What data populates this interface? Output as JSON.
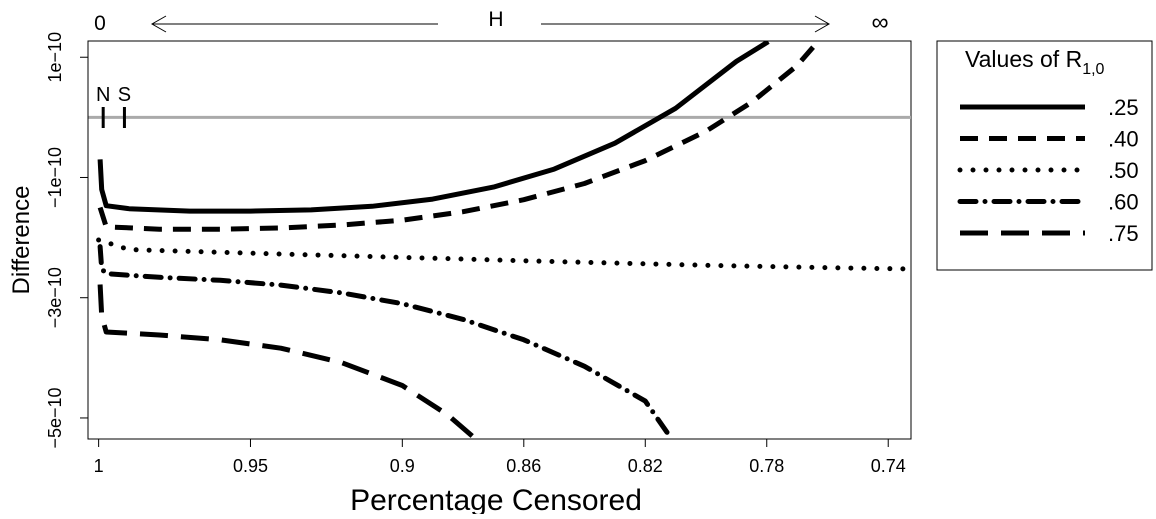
{
  "chart_data": {
    "type": "line",
    "title": "",
    "xlabel": "Percentage Censored",
    "ylabel": "Difference",
    "x_reversed": true,
    "xlim": [
      1.0035,
      0.7325
    ],
    "ylim": [
      -5.35e-10,
      1.27e-10
    ],
    "x_ticks": [
      {
        "value": 1.0,
        "label": "1"
      },
      {
        "value": 0.95,
        "label": "0.95"
      },
      {
        "value": 0.9,
        "label": "0.9"
      },
      {
        "value": 0.86,
        "label": "0.86"
      },
      {
        "value": 0.82,
        "label": "0.82"
      },
      {
        "value": 0.78,
        "label": "0.78"
      },
      {
        "value": 0.74,
        "label": "0.74"
      }
    ],
    "y_ticks": [
      {
        "value": 1e-10,
        "label": "1e−10"
      },
      {
        "value": -1e-10,
        "label": "−1e−10"
      },
      {
        "value": -3e-10,
        "label": "−3e−10"
      },
      {
        "value": -5e-10,
        "label": "−5e−10"
      }
    ],
    "reference_line": {
      "y": 0,
      "color": "#aaaaaa"
    },
    "top_axis": {
      "left_label": "0",
      "center_label": "H",
      "right_label": "∞"
    },
    "markers": [
      {
        "label": "N",
        "x": 0.9985
      },
      {
        "label": "S",
        "x": 0.9915
      }
    ],
    "legend": {
      "title_main": "Values of R",
      "title_sub": "1,0",
      "position": "right",
      "entries": [
        ".25",
        ".40",
        ".50",
        ".60",
        ".75"
      ]
    },
    "series": [
      {
        "name": ".25",
        "dash": "solid",
        "color": "#000000",
        "points": [
          [
            0.9995,
            -7e-11
          ],
          [
            0.999,
            -1.2e-10
          ],
          [
            0.9975,
            -1.47e-10
          ],
          [
            0.99,
            -1.52e-10
          ],
          [
            0.97,
            -1.56e-10
          ],
          [
            0.95,
            -1.56e-10
          ],
          [
            0.93,
            -1.54e-10
          ],
          [
            0.91,
            -1.48e-10
          ],
          [
            0.89,
            -1.36e-10
          ],
          [
            0.87,
            -1.16e-10
          ],
          [
            0.85,
            -8.6e-11
          ],
          [
            0.83,
            -4.3e-11
          ],
          [
            0.81,
            1.5e-11
          ],
          [
            0.79,
            9.3e-11
          ],
          [
            0.7795,
            1.26e-10
          ]
        ]
      },
      {
        "name": ".40",
        "dash": "long",
        "color": "#000000",
        "points": [
          [
            0.9995,
            -1.5e-10
          ],
          [
            0.9975,
            -1.82e-10
          ],
          [
            0.98,
            -1.86e-10
          ],
          [
            0.96,
            -1.86e-10
          ],
          [
            0.94,
            -1.84e-10
          ],
          [
            0.92,
            -1.79e-10
          ],
          [
            0.9,
            -1.71e-10
          ],
          [
            0.88,
            -1.57e-10
          ],
          [
            0.86,
            -1.37e-10
          ],
          [
            0.84,
            -1.1e-10
          ],
          [
            0.82,
            -7.2e-11
          ],
          [
            0.8,
            -2.3e-11
          ],
          [
            0.785,
            2.5e-11
          ],
          [
            0.77,
            8.6e-11
          ],
          [
            0.7635,
            1.24e-10
          ]
        ]
      },
      {
        "name": ".50",
        "dash": "dotted",
        "color": "#000000",
        "points": [
          [
            1.0,
            -2.04e-10
          ],
          [
            0.99,
            -2.2e-10
          ],
          [
            0.95,
            -2.26e-10
          ],
          [
            0.9,
            -2.33e-10
          ],
          [
            0.85,
            -2.4e-10
          ],
          [
            0.8,
            -2.46e-10
          ],
          [
            0.76,
            -2.5e-10
          ],
          [
            0.735,
            -2.52e-10
          ]
        ]
      },
      {
        "name": ".60",
        "dash": "dashdot",
        "color": "#000000",
        "points": [
          [
            0.9995,
            -2.15e-10
          ],
          [
            0.999,
            -2.52e-10
          ],
          [
            0.9975,
            -2.6e-10
          ],
          [
            0.98,
            -2.66e-10
          ],
          [
            0.96,
            -2.71e-10
          ],
          [
            0.94,
            -2.79e-10
          ],
          [
            0.92,
            -2.92e-10
          ],
          [
            0.9,
            -3.1e-10
          ],
          [
            0.88,
            -3.36e-10
          ],
          [
            0.86,
            -3.7e-10
          ],
          [
            0.84,
            -4.14e-10
          ],
          [
            0.82,
            -4.72e-10
          ],
          [
            0.812,
            -5.3e-10
          ]
        ]
      },
      {
        "name": ".75",
        "dash": "longdash",
        "color": "#000000",
        "points": [
          [
            0.9995,
            -2.78e-10
          ],
          [
            0.999,
            -3.3e-10
          ],
          [
            0.9975,
            -3.57e-10
          ],
          [
            0.98,
            -3.62e-10
          ],
          [
            0.96,
            -3.7e-10
          ],
          [
            0.94,
            -3.84e-10
          ],
          [
            0.92,
            -4.08e-10
          ],
          [
            0.9,
            -4.46e-10
          ],
          [
            0.885,
            -4.95e-10
          ],
          [
            0.877,
            -5.3e-10
          ]
        ]
      }
    ]
  }
}
